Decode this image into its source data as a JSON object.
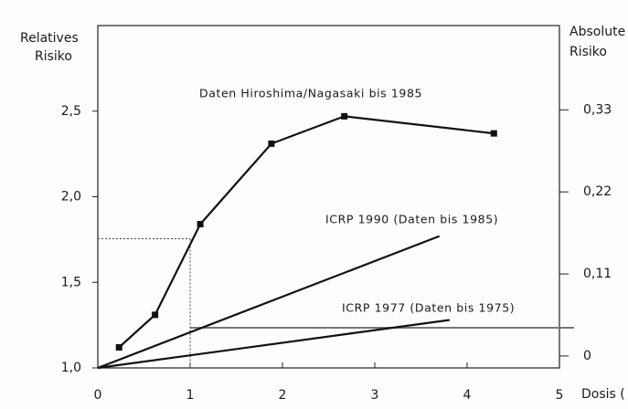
{
  "chart_data": {
    "type": "line",
    "y_label": "Relatives Risiko",
    "y2_label": "Absolute Risiko",
    "x_label": "Dosis (",
    "xlim": [
      0,
      5
    ],
    "ylim": [
      1.0,
      3.0
    ],
    "y2lim": [
      -0.016,
      0.443
    ],
    "xticks": [
      0,
      1,
      2,
      3,
      4,
      5
    ],
    "yticks": [
      {
        "value": 1.0,
        "label": "1,0"
      },
      {
        "value": 1.5,
        "label": "1,5"
      },
      {
        "value": 2.0,
        "label": "2,0"
      },
      {
        "value": 2.5,
        "label": "2,5"
      }
    ],
    "y2ticks": [
      0,
      {
        "value": 0.11,
        "label": "0,11"
      },
      {
        "value": 0.22,
        "label": "0,22"
      },
      {
        "value": 0.33,
        "label": "0,33"
      }
    ],
    "series": [
      {
        "name": "Daten Hiroshima/Nagasaki bis 1985",
        "color": "#111111",
        "markers": true,
        "x": [
          0.23,
          0.62,
          1.11,
          1.88,
          2.67,
          4.29
        ],
        "values": [
          1.12,
          1.31,
          1.84,
          2.31,
          2.47,
          2.37
        ]
      },
      {
        "name": "ICRP 1990 (Daten bis 1985)",
        "color": "#111111",
        "markers": false,
        "x": [
          0,
          3.7
        ],
        "values": [
          1.0,
          1.77
        ]
      },
      {
        "name": "ICRP 1977 (Daten bis 1975)",
        "color": "#111111",
        "markers": false,
        "x": [
          0,
          3.81
        ],
        "values": [
          1.0,
          1.28
        ]
      }
    ],
    "reference_point": {
      "x": 1,
      "y": 1.755
    },
    "reference_hline": {
      "y": 1.235,
      "x_from": 1
    }
  }
}
